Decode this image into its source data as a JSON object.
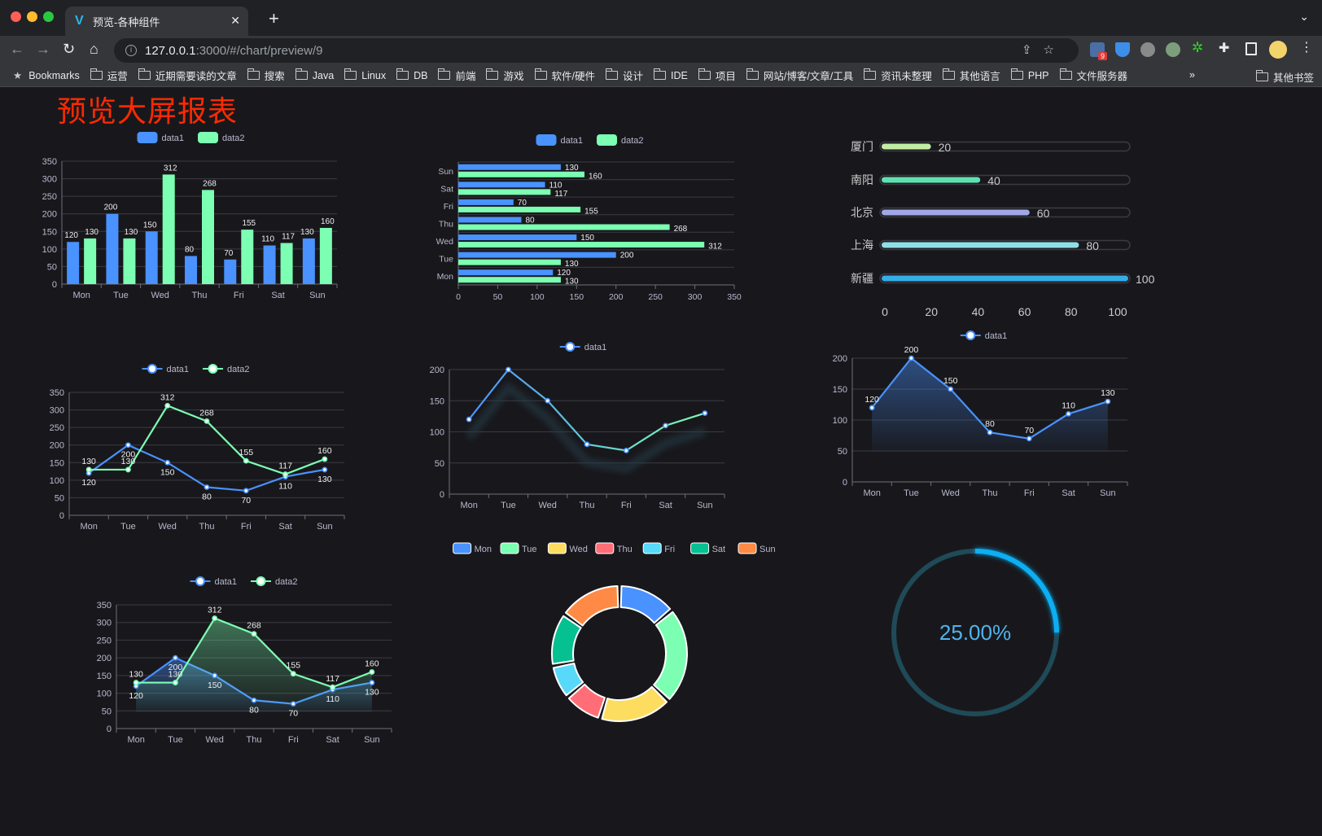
{
  "browser": {
    "tab_title": "预览-各种组件",
    "tab_icon": "vite-logo-icon",
    "new_tab": "+",
    "url_host": "127.0.0.1",
    "url_rest": ":3000/#/chart/preview/9",
    "extension_badge": "9",
    "bookmarks_label": "Bookmarks",
    "bookmarks": [
      "运营",
      "近期需要读的文章",
      "搜索",
      "Java",
      "Linux",
      "DB",
      "前端",
      "游戏",
      "软件/硬件",
      "设计",
      "IDE",
      "项目",
      "网站/博客/文章/工具",
      "资讯未整理",
      "其他语言",
      "PHP",
      "文件服务器"
    ],
    "more": "»",
    "other_bookmarks": "其他书签"
  },
  "page": {
    "title": "预览大屏报表"
  },
  "chart_data": [
    {
      "type": "bar",
      "categories": [
        "Mon",
        "Tue",
        "Wed",
        "Thu",
        "Fri",
        "Sat",
        "Sun"
      ],
      "yticks": [
        0,
        50,
        100,
        150,
        200,
        250,
        300,
        350
      ],
      "ylim": [
        0,
        350
      ],
      "grid": true,
      "legend": "top-center",
      "series": [
        {
          "name": "data1",
          "values": [
            120,
            200,
            150,
            80,
            70,
            110,
            130
          ],
          "color": "#4992ff"
        },
        {
          "name": "data2",
          "values": [
            130,
            130,
            312,
            268,
            155,
            117,
            160
          ],
          "color": "#7cffb2"
        }
      ]
    },
    {
      "type": "bar",
      "orientation": "horizontal",
      "categories": [
        "Mon",
        "Tue",
        "Wed",
        "Thu",
        "Fri",
        "Sat",
        "Sun"
      ],
      "xticks": [
        0,
        50,
        100,
        150,
        200,
        250,
        300,
        350
      ],
      "xlim": [
        0,
        350
      ],
      "grid": true,
      "legend": "top-center",
      "series": [
        {
          "name": "data1",
          "values": [
            120,
            200,
            150,
            80,
            70,
            110,
            130
          ],
          "color": "#4992ff"
        },
        {
          "name": "data2",
          "values": [
            130,
            130,
            312,
            268,
            155,
            117,
            160
          ],
          "color": "#7cffb2"
        }
      ]
    },
    {
      "type": "bar",
      "orientation": "horizontal",
      "style": "progress",
      "categories": [
        "厦门",
        "南阳",
        "北京",
        "上海",
        "新疆"
      ],
      "values": [
        20,
        40,
        60,
        80,
        100
      ],
      "colors": [
        "#c2eea3",
        "#5fe0b0",
        "#a0a7e6",
        "#8fe0e6",
        "#34aee8"
      ],
      "xticks": [
        0,
        20,
        40,
        60,
        80,
        100
      ],
      "xlim": [
        0,
        100
      ]
    },
    {
      "type": "line",
      "categories": [
        "Mon",
        "Tue",
        "Wed",
        "Thu",
        "Fri",
        "Sat",
        "Sun"
      ],
      "yticks": [
        0,
        50,
        100,
        150,
        200,
        250,
        300,
        350
      ],
      "ylim": [
        0,
        350
      ],
      "grid": true,
      "legend": "top-center",
      "series": [
        {
          "name": "data1",
          "values": [
            120,
            200,
            150,
            80,
            70,
            110,
            130
          ],
          "color": "#4992ff"
        },
        {
          "name": "data2",
          "values": [
            130,
            130,
            312,
            268,
            155,
            117,
            160
          ],
          "color": "#7cffb2"
        }
      ]
    },
    {
      "type": "line",
      "categories": [
        "Mon",
        "Tue",
        "Wed",
        "Thu",
        "Fri",
        "Sat",
        "Sun"
      ],
      "yticks": [
        0,
        50,
        100,
        150,
        200
      ],
      "ylim": [
        0,
        200
      ],
      "grid": true,
      "legend": "top-center",
      "gradient": [
        "#4992ff",
        "#7cffb2"
      ],
      "series": [
        {
          "name": "data1",
          "values": [
            120,
            200,
            150,
            80,
            70,
            110,
            130
          ],
          "color": "#4992ff"
        }
      ]
    },
    {
      "type": "area",
      "categories": [
        "Mon",
        "Tue",
        "Wed",
        "Thu",
        "Fri",
        "Sat",
        "Sun"
      ],
      "yticks": [
        0,
        50,
        100,
        150,
        200
      ],
      "ylim": [
        0,
        200
      ],
      "grid": true,
      "legend": "top-center",
      "series": [
        {
          "name": "data1",
          "values": [
            120,
            200,
            150,
            80,
            70,
            110,
            130
          ],
          "color": "#4992ff"
        }
      ]
    },
    {
      "type": "pie",
      "donut": true,
      "legend": "top-center",
      "categories": [
        "Mon",
        "Tue",
        "Wed",
        "Thu",
        "Fri",
        "Sat",
        "Sun"
      ],
      "values": [
        120,
        200,
        150,
        80,
        70,
        110,
        130
      ],
      "colors": [
        "#4992ff",
        "#7cffb2",
        "#fddd60",
        "#ff6e76",
        "#58d9f9",
        "#05c091",
        "#ff8a45"
      ]
    },
    {
      "type": "area",
      "categories": [
        "Mon",
        "Tue",
        "Wed",
        "Thu",
        "Fri",
        "Sat",
        "Sun"
      ],
      "yticks": [
        0,
        50,
        100,
        150,
        200,
        250,
        300,
        350
      ],
      "ylim": [
        0,
        350
      ],
      "grid": true,
      "legend": "top-center",
      "series": [
        {
          "name": "data1",
          "values": [
            120,
            200,
            150,
            80,
            70,
            110,
            130
          ],
          "color": "#4992ff"
        },
        {
          "name": "data2",
          "values": [
            130,
            130,
            312,
            268,
            155,
            117,
            160
          ],
          "color": "#7cffb2"
        }
      ]
    },
    {
      "type": "gauge",
      "value": 25,
      "max": 100,
      "label": "25.00%",
      "color": "#11aef2",
      "track_color": "#1f4a57",
      "text_color": "#4fb3ee"
    }
  ]
}
